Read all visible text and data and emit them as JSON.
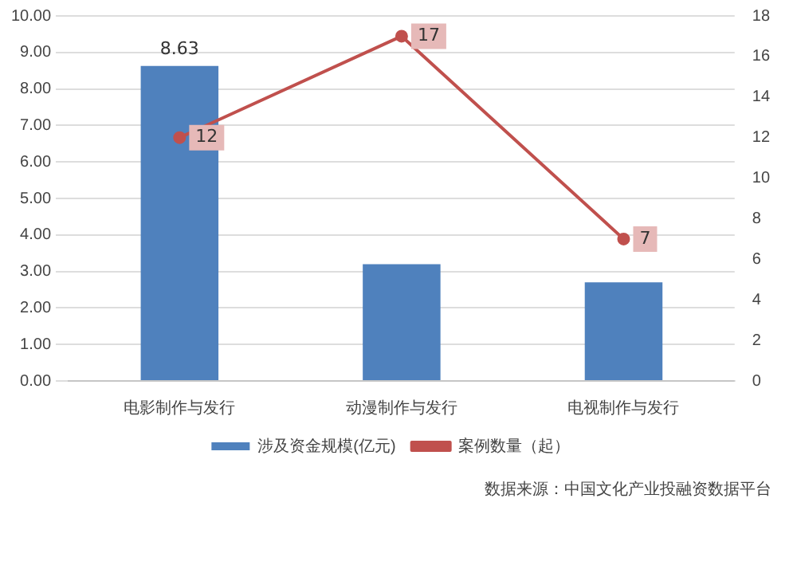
{
  "chart_data": {
    "type": "bar",
    "categories": [
      "电影制作与发行",
      "动漫制作与发行",
      "电视制作与发行"
    ],
    "series": [
      {
        "name": "涉及资金规模(亿元)",
        "color": "#4f81bd",
        "values": [
          8.63,
          3.2,
          2.7
        ],
        "value_labels": [
          "8.63",
          null,
          null
        ]
      },
      {
        "name": "案例数量（起）",
        "type": "line",
        "axis": "y2",
        "color": "#c0504d",
        "values": [
          12,
          17,
          7
        ],
        "value_labels": [
          "12",
          "17",
          "7"
        ],
        "marker": "circle"
      }
    ],
    "ylim": [
      0,
      10
    ],
    "yticks": [
      {
        "value": 0,
        "label": "0.00"
      },
      {
        "value": 1,
        "label": "1.00"
      },
      {
        "value": 2,
        "label": "2.00"
      },
      {
        "value": 3,
        "label": "3.00"
      },
      {
        "value": 4,
        "label": "4.00"
      },
      {
        "value": 5,
        "label": "5.00"
      },
      {
        "value": 6,
        "label": "6.00"
      },
      {
        "value": 7,
        "label": "7.00"
      },
      {
        "value": 8,
        "label": "8.00"
      },
      {
        "value": 9,
        "label": "9.00"
      },
      {
        "value": 10,
        "label": "10.00"
      }
    ],
    "y2lim": [
      0,
      18
    ],
    "y2ticks": [
      0,
      2,
      4,
      6,
      8,
      10,
      12,
      14,
      16,
      18
    ],
    "grid": "y",
    "legend": "bottom",
    "annotations": [
      "数据来源：中国文化产业投融资数据平台"
    ]
  }
}
